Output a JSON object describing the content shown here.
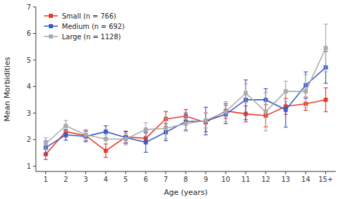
{
  "chart_data": {
    "type": "line",
    "xlabel": "Age (years)",
    "ylabel": "Mean Morbidities",
    "x": [
      1,
      2,
      3,
      4,
      5,
      6,
      7,
      8,
      9,
      10,
      11,
      12,
      13,
      14,
      15
    ],
    "series": [
      {
        "name": "Small (n = 766)",
        "color": "#e8392a",
        "values": [
          1.45,
          2.3,
          2.15,
          1.58,
          2.1,
          2.05,
          2.78,
          2.88,
          2.65,
          3.08,
          2.97,
          2.9,
          3.25,
          3.35,
          3.5
        ],
        "errors": [
          0.2,
          0.2,
          0.18,
          0.25,
          0.22,
          0.2,
          0.28,
          0.25,
          0.35,
          0.28,
          0.3,
          0.42,
          0.3,
          0.25,
          0.45
        ]
      },
      {
        "name": "Medium (n = 692)",
        "color": "#3a5bc7",
        "values": [
          1.7,
          2.18,
          2.12,
          2.3,
          2.08,
          1.9,
          2.28,
          2.68,
          2.7,
          2.95,
          3.5,
          3.5,
          3.12,
          4.05,
          4.72
        ],
        "errors": [
          0.25,
          0.2,
          0.2,
          0.22,
          0.22,
          0.38,
          0.32,
          0.32,
          0.52,
          0.35,
          0.75,
          0.42,
          0.65,
          0.5,
          0.6
        ]
      },
      {
        "name": "Large (n = 1128)",
        "color": "#aaaaaa",
        "values": [
          1.85,
          2.52,
          2.18,
          2.02,
          2.02,
          2.38,
          2.42,
          2.6,
          2.72,
          3.05,
          3.75,
          3.05,
          3.82,
          3.82,
          5.45
        ],
        "errors": [
          0.22,
          0.2,
          0.2,
          0.18,
          0.22,
          0.25,
          0.38,
          0.28,
          0.28,
          0.38,
          0.35,
          0.72,
          0.38,
          0.62,
          0.9
        ]
      }
    ],
    "xlim": [
      0.5,
      15.5
    ],
    "xticks": [
      1,
      2,
      3,
      4,
      5,
      6,
      7,
      8,
      9,
      10,
      11,
      12,
      13,
      14,
      {
        "value": 15,
        "label": "15+"
      }
    ],
    "ylim": [
      0.8,
      7.0
    ],
    "yticks": [
      1,
      2,
      3,
      4,
      5,
      6,
      7
    ],
    "marker": "square",
    "line_style": "solid",
    "grid": false,
    "legend": "upper left"
  }
}
